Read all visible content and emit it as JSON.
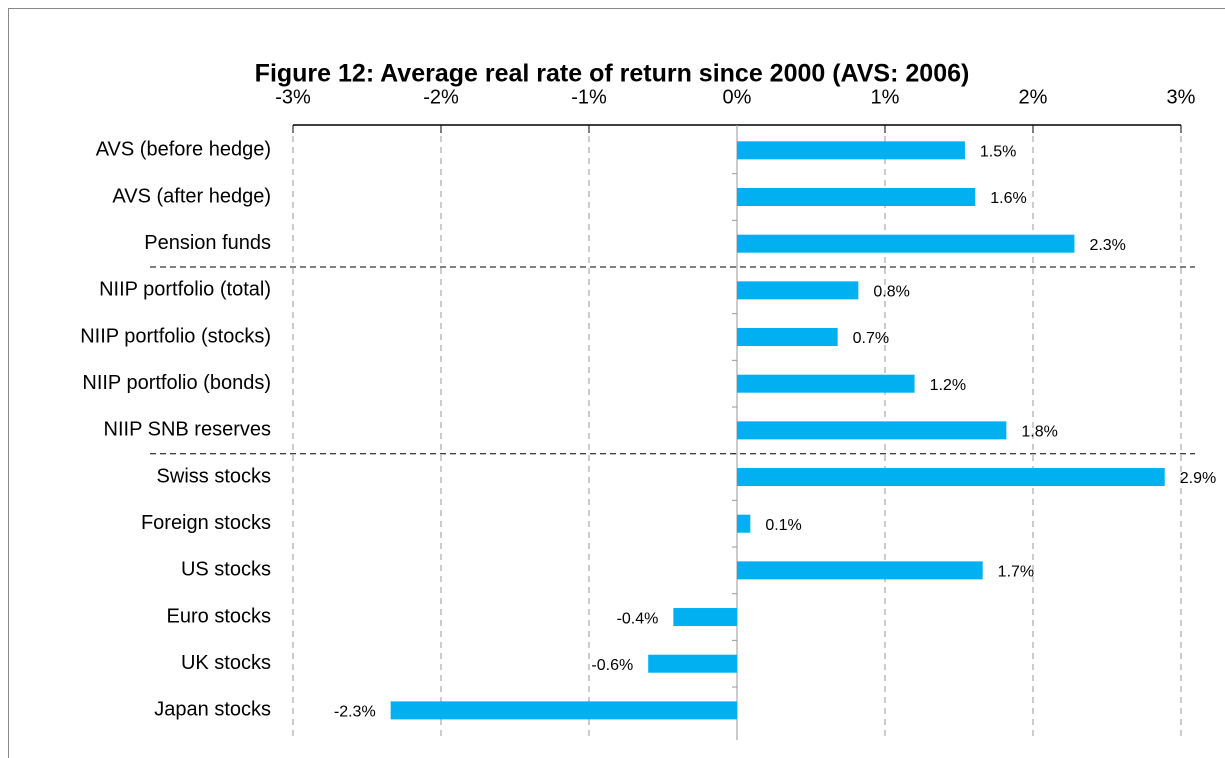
{
  "chart_data": {
    "type": "hbar",
    "title": "Figure 12: Average real rate of return since 2000 (AVS: 2006)",
    "categories": [
      "AVS (before hedge)",
      "AVS (after hedge)",
      "Pension funds",
      "NIIP portfolio (total)",
      "NIIP portfolio (stocks)",
      "NIIP portfolio (bonds)",
      "NIIP SNB reserves",
      "Swiss stocks",
      "Foreign stocks",
      "US stocks",
      "Euro stocks",
      "UK stocks",
      "Japan stocks"
    ],
    "values": [
      1.54,
      1.61,
      2.28,
      0.82,
      0.68,
      1.2,
      1.82,
      2.89,
      0.09,
      1.66,
      -0.43,
      -0.6,
      -2.34
    ],
    "value_labels": [
      "1.5%",
      "1.6%",
      "2.3%",
      "0.8%",
      "0.7%",
      "1.2%",
      "1.8%",
      "2.9%",
      "0.1%",
      "1.7%",
      "-0.4%",
      "-0.6%",
      "-2.3%"
    ],
    "color": "#00b0f0",
    "xlim": [
      -3,
      3
    ],
    "xticks": [
      {
        "value": -3,
        "label": "-3%"
      },
      {
        "value": -2,
        "label": "-2%"
      },
      {
        "value": -1,
        "label": "-1%"
      },
      {
        "value": 0,
        "label": "0%"
      },
      {
        "value": 1,
        "label": "1%"
      },
      {
        "value": 2,
        "label": "2%"
      },
      {
        "value": 3,
        "label": "3%"
      }
    ],
    "grid": true
  }
}
